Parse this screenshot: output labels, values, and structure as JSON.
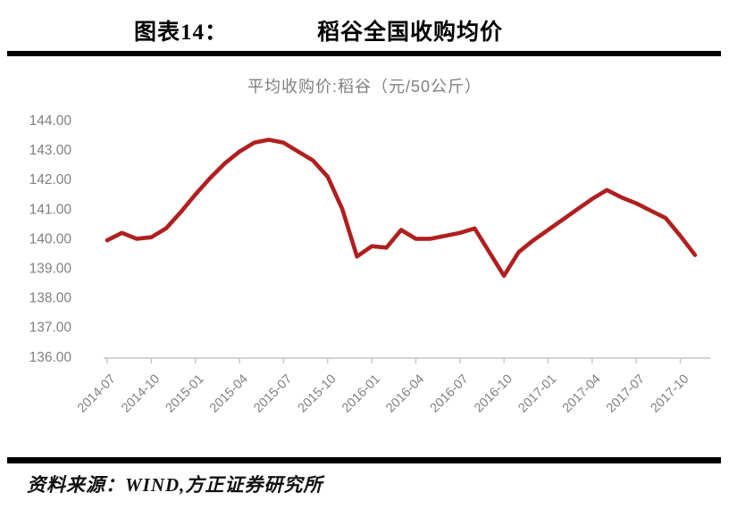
{
  "header": {
    "figure_label": "图表14：",
    "title": "稻谷全国收购均价"
  },
  "chart_data": {
    "type": "line",
    "title": "平均收购价:稻谷（元/50公斤）",
    "series_name": "平均收购价:稻谷",
    "unit": "元/50公斤",
    "line_color": "#B01F1F",
    "axis_color": "#c6c6c6",
    "label_color": "#808080",
    "grid": false,
    "legend_position": "none",
    "ylim": [
      136,
      144
    ],
    "y_tick_labels": [
      "144.00",
      "143.00",
      "142.00",
      "141.00",
      "140.00",
      "139.00",
      "138.00",
      "137.00",
      "136.00"
    ],
    "x_tick_labels": [
      "2014-07",
      "2014-10",
      "2015-01",
      "2015-04",
      "2015-07",
      "2015-10",
      "2016-01",
      "2016-04",
      "2016-07",
      "2016-10",
      "2017-01",
      "2017-04",
      "2017-07",
      "2017-10"
    ],
    "x_tick_every_months": 3,
    "x": [
      "2014-07",
      "2014-08",
      "2014-09",
      "2014-10",
      "2014-11",
      "2014-12",
      "2015-01",
      "2015-02",
      "2015-03",
      "2015-04",
      "2015-05",
      "2015-06",
      "2015-07",
      "2015-08",
      "2015-09",
      "2015-10",
      "2015-11",
      "2015-12",
      "2016-01",
      "2016-02",
      "2016-03",
      "2016-04",
      "2016-05",
      "2016-06",
      "2016-07",
      "2016-08",
      "2016-09",
      "2016-10",
      "2016-11",
      "2016-12",
      "2017-01",
      "2017-02",
      "2017-03",
      "2017-04",
      "2017-05",
      "2017-06",
      "2017-07",
      "2017-08",
      "2017-09",
      "2017-10",
      "2017-11"
    ],
    "values": [
      139.95,
      140.2,
      140.0,
      140.05,
      140.35,
      140.9,
      141.5,
      142.05,
      142.55,
      142.95,
      143.25,
      143.35,
      143.25,
      142.95,
      142.65,
      142.1,
      141.0,
      139.4,
      139.75,
      139.7,
      140.3,
      140.0,
      140.0,
      140.1,
      140.2,
      140.35,
      139.55,
      138.75,
      139.55,
      139.95,
      140.3,
      140.65,
      141.0,
      141.35,
      141.65,
      141.4,
      141.2,
      140.95,
      140.7,
      140.1,
      139.45
    ]
  },
  "footer": {
    "source": "资料来源：WIND,方正证券研究所"
  }
}
